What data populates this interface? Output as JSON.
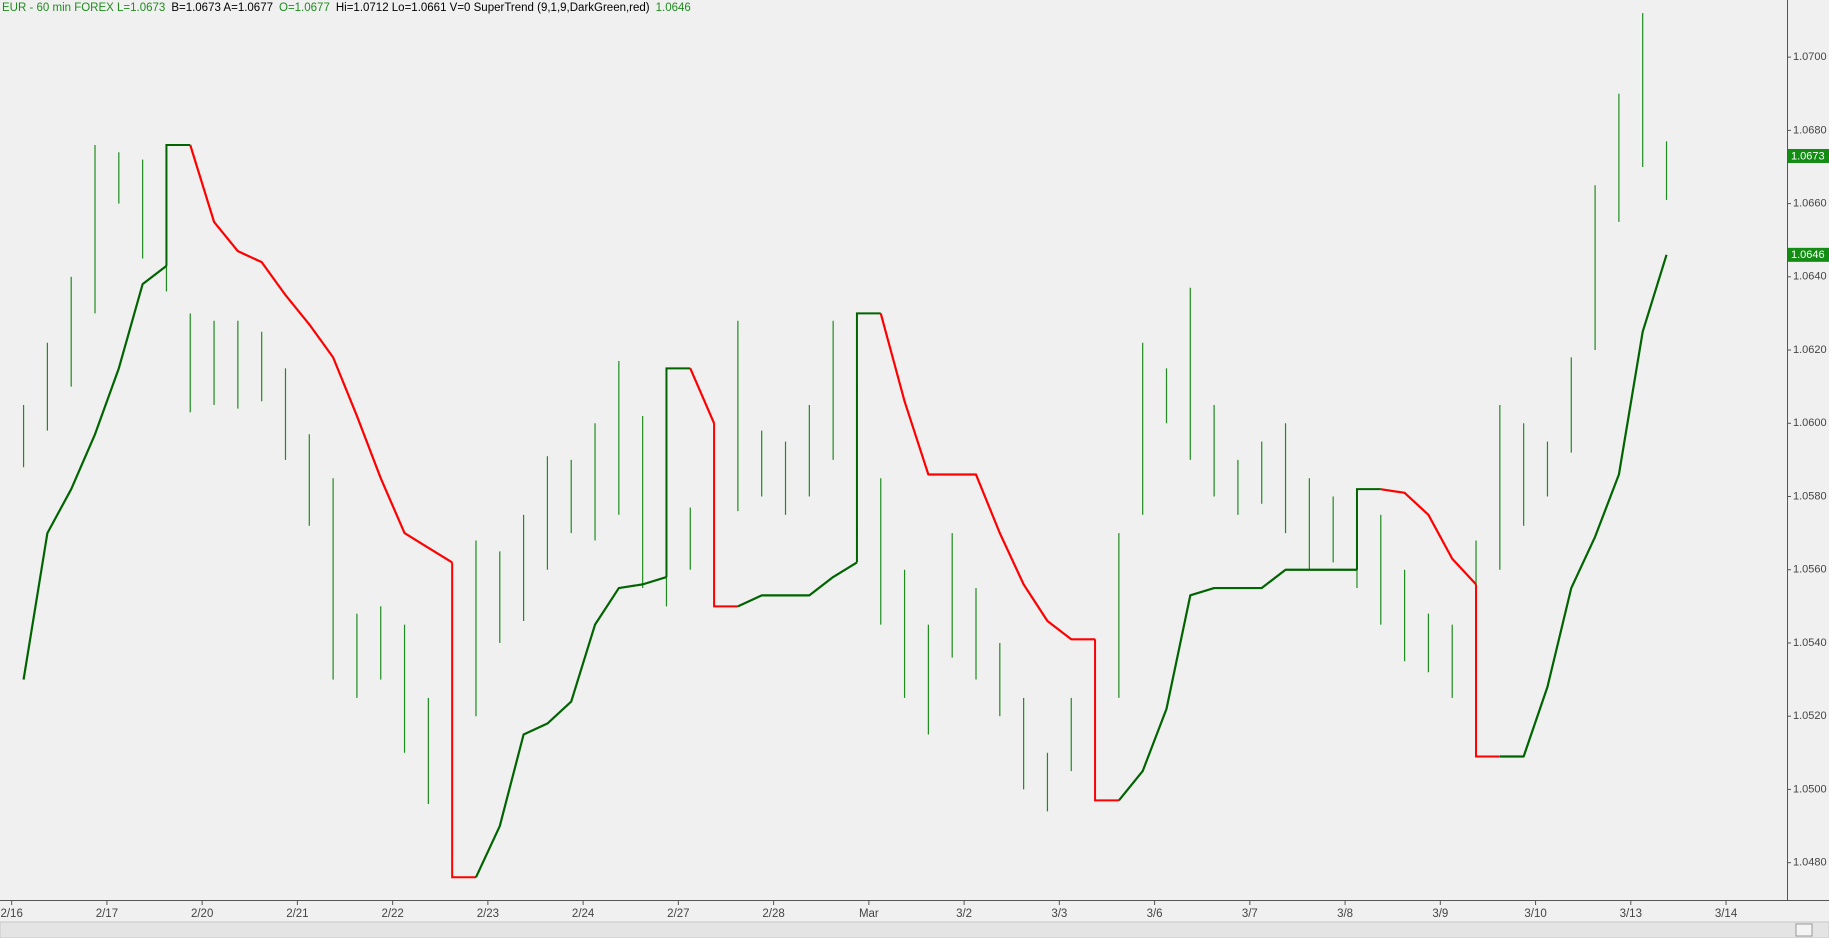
{
  "chart_data": {
    "type": "ohlc",
    "header": [
      {
        "text": "EUR - 60 min  FOREX  L=1.0673",
        "color": "#1e8c1e"
      },
      {
        "text": "B=1.0673  A=1.0677",
        "color": "#000000"
      },
      {
        "text": "O=1.0677",
        "color": "#1e8c1e"
      },
      {
        "text": "Hi=1.0712  Lo=1.0661  V=0  SuperTrend (9,1,9,DarkGreen,red)",
        "color": "#000000"
      },
      {
        "text": "1.0646",
        "color": "#1e8c1e"
      }
    ],
    "color": "#1e8c1e",
    "highs": [
      1.0605,
      1.0622,
      1.064,
      1.0676,
      1.0674,
      1.0672,
      1.066,
      1.063,
      1.0628,
      1.0628,
      1.0625,
      1.0615,
      1.0597,
      1.0585,
      1.0548,
      1.055,
      1.0545,
      1.0525,
      1.0518,
      1.0568,
      1.0565,
      1.0575,
      1.0591,
      1.059,
      1.06,
      1.0617,
      1.0602,
      1.0585,
      1.0577,
      1.059,
      1.0628,
      1.0598,
      1.0595,
      1.0605,
      1.0628,
      1.061,
      1.0585,
      1.056,
      1.0545,
      1.057,
      1.0555,
      1.054,
      1.0525,
      1.051,
      1.0525,
      1.0527,
      1.057,
      1.0622,
      1.0615,
      1.0637,
      1.0605,
      1.059,
      1.0595,
      1.06,
      1.0585,
      1.058,
      1.0575,
      1.0575,
      1.056,
      1.0548,
      1.0545,
      1.0568,
      1.0605,
      1.06,
      1.0595,
      1.0618,
      1.0665,
      1.069,
      1.0712,
      1.0677
    ],
    "lows": [
      1.0588,
      1.0598,
      1.061,
      1.063,
      1.066,
      1.0645,
      1.0636,
      1.0603,
      1.0605,
      1.0604,
      1.0606,
      1.059,
      1.0572,
      1.053,
      1.0525,
      1.053,
      1.051,
      1.0496,
      1.0494,
      1.052,
      1.054,
      1.0546,
      1.056,
      1.057,
      1.0568,
      1.0575,
      1.0555,
      1.055,
      1.056,
      1.057,
      1.0576,
      1.058,
      1.0575,
      1.058,
      1.059,
      1.057,
      1.0545,
      1.0525,
      1.0515,
      1.0536,
      1.053,
      1.052,
      1.05,
      1.0494,
      1.0505,
      1.051,
      1.0525,
      1.0575,
      1.06,
      1.059,
      1.058,
      1.0575,
      1.0578,
      1.057,
      1.056,
      1.0562,
      1.0555,
      1.0545,
      1.0535,
      1.0532,
      1.0525,
      1.0532,
      1.056,
      1.0572,
      1.058,
      1.0592,
      1.062,
      1.0655,
      1.067,
      1.0661
    ],
    "series": [
      {
        "color": "#006400",
        "values": [
          1.053,
          1.057,
          1.0582,
          1.0597,
          1.0615,
          1.0638,
          1.0643,
          null,
          null,
          null,
          null,
          null,
          null,
          null,
          null,
          null,
          null,
          null,
          null,
          1.0476,
          1.049,
          1.0515,
          1.0518,
          1.0524,
          1.0545,
          1.0555,
          1.0556,
          1.0558,
          null,
          null,
          1.055,
          1.0553,
          1.0553,
          1.0553,
          1.0558,
          1.0562,
          null,
          null,
          null,
          null,
          null,
          null,
          null,
          null,
          null,
          null,
          1.0497,
          1.0505,
          1.0522,
          1.0553,
          1.0555,
          1.0555,
          1.0555,
          1.056,
          1.056,
          1.056,
          1.056,
          null,
          null,
          null,
          null,
          null,
          1.0509,
          1.0509,
          1.0528,
          1.0555,
          1.0569,
          1.0586,
          1.0625,
          1.0646
        ]
      },
      {
        "color": "#ff0000",
        "values": [
          null,
          null,
          null,
          null,
          null,
          null,
          null,
          1.0676,
          1.0655,
          1.0647,
          1.0644,
          1.0635,
          1.0627,
          1.0618,
          1.0602,
          1.0585,
          1.057,
          1.0566,
          1.0562,
          null,
          null,
          null,
          null,
          null,
          null,
          null,
          null,
          null,
          1.0615,
          1.06,
          null,
          null,
          null,
          null,
          null,
          null,
          1.063,
          1.0606,
          1.0586,
          1.0586,
          1.0586,
          1.057,
          1.0556,
          1.0546,
          1.0541,
          1.0541,
          null,
          null,
          null,
          null,
          null,
          null,
          null,
          null,
          null,
          null,
          null,
          1.0582,
          1.0581,
          1.0575,
          1.0563,
          1.0556,
          null,
          null,
          null,
          null,
          null,
          null,
          null,
          null
        ]
      }
    ],
    "ylim": [
      1.04698,
      1.07156
    ],
    "yticks": [
      {
        "value": 1.048,
        "label": "1.0480"
      },
      {
        "value": 1.05,
        "label": "1.0500"
      },
      {
        "value": 1.052,
        "label": "1.0520"
      },
      {
        "value": 1.054,
        "label": "1.0540"
      },
      {
        "value": 1.056,
        "label": "1.0560"
      },
      {
        "value": 1.058,
        "label": "1.0580"
      },
      {
        "value": 1.06,
        "label": "1.0600"
      },
      {
        "value": 1.062,
        "label": "1.0620"
      },
      {
        "value": 1.064,
        "label": "1.0640"
      },
      {
        "value": 1.066,
        "label": "1.0660"
      },
      {
        "value": 1.068,
        "label": "1.0680"
      },
      {
        "value": 1.07,
        "label": "1.0700"
      }
    ],
    "price_markers": [
      {
        "value": 1.0673,
        "label": "1.0673"
      },
      {
        "value": 1.0646,
        "label": "1.0646"
      }
    ],
    "xlim": [
      -0.99,
      74.06
    ],
    "xticks": [
      {
        "value": -0.5,
        "label": "2/16"
      },
      {
        "value": 3.5,
        "label": "2/17"
      },
      {
        "value": 7.5,
        "label": "2/20"
      },
      {
        "value": 11.5,
        "label": "2/21"
      },
      {
        "value": 15.5,
        "label": "2/22"
      },
      {
        "value": 19.5,
        "label": "2/23"
      },
      {
        "value": 23.5,
        "label": "2/24"
      },
      {
        "value": 27.5,
        "label": "2/27"
      },
      {
        "value": 31.5,
        "label": "2/28"
      },
      {
        "value": 35.5,
        "label": "Mar"
      },
      {
        "value": 39.5,
        "label": "3/2"
      },
      {
        "value": 43.5,
        "label": "3/3"
      },
      {
        "value": 47.5,
        "label": "3/6"
      },
      {
        "value": 51.5,
        "label": "3/7"
      },
      {
        "value": 55.5,
        "label": "3/8"
      },
      {
        "value": 59.5,
        "label": "3/9"
      },
      {
        "value": 63.5,
        "label": "3/10"
      },
      {
        "value": 67.5,
        "label": "3/13"
      },
      {
        "value": 71.5,
        "label": "3/14"
      }
    ]
  }
}
